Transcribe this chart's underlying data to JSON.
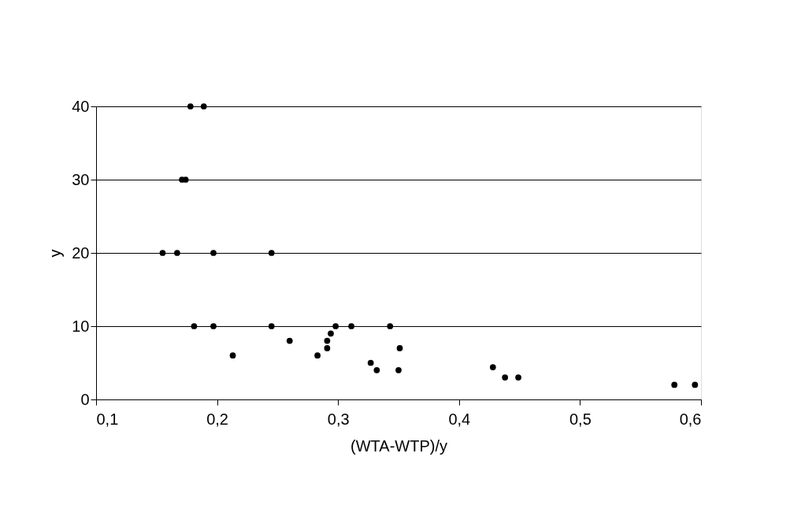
{
  "chart_data": {
    "type": "scatter",
    "xlabel": "(WTA-WTP)/y",
    "ylabel": "y",
    "x": [
      0.178,
      0.189,
      0.171,
      0.174,
      0.155,
      0.167,
      0.197,
      0.245,
      0.181,
      0.197,
      0.245,
      0.26,
      0.213,
      0.283,
      0.291,
      0.291,
      0.294,
      0.298,
      0.311,
      0.343,
      0.351,
      0.327,
      0.332,
      0.35,
      0.428,
      0.438,
      0.449,
      0.578,
      0.595
    ],
    "series": [
      {
        "color": "#000000",
        "values": [
          40,
          40,
          30,
          30,
          20,
          20,
          20,
          20,
          10,
          10,
          10,
          8,
          6,
          6,
          7,
          8,
          9,
          10,
          10,
          10,
          7,
          5,
          4,
          4,
          4.4,
          3,
          3,
          2,
          2
        ]
      }
    ],
    "xlim": [
      0.1,
      0.6
    ],
    "ylim": [
      0,
      40
    ],
    "xticks": [
      {
        "value": 0.1,
        "label": "0,1"
      },
      {
        "value": 0.2,
        "label": "0,2"
      },
      {
        "value": 0.3,
        "label": "0,3"
      },
      {
        "value": 0.4,
        "label": "0,4"
      },
      {
        "value": 0.5,
        "label": "0,5"
      },
      {
        "value": 0.6,
        "label": "0,6"
      }
    ],
    "yticks": [
      0,
      10,
      20,
      30,
      40
    ],
    "grid": "y",
    "marker": "circle"
  }
}
